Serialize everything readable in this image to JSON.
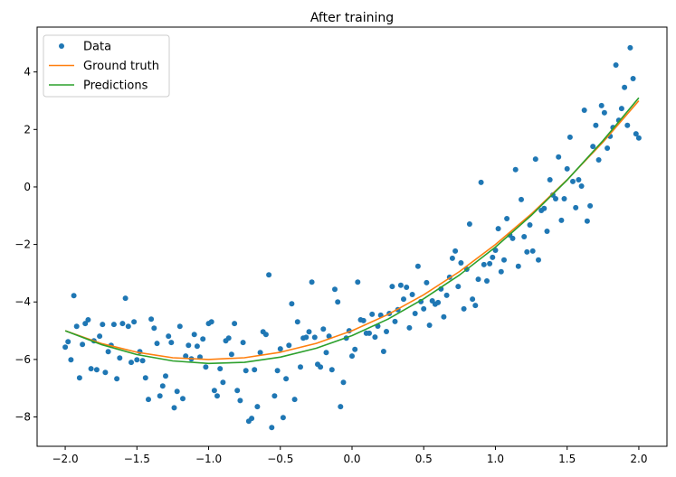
{
  "chart_data": {
    "type": "scatter",
    "title": "After training",
    "xlabel": "",
    "ylabel": "",
    "xlim": [
      -2.196,
      2.196
    ],
    "ylim": [
      -9.02,
      5.56
    ],
    "grid": false,
    "legend_position": "top-left",
    "x_ticks": [
      -2.0,
      -1.5,
      -1.0,
      -0.5,
      0.0,
      0.5,
      1.0,
      1.5,
      2.0
    ],
    "x_tick_labels": [
      "−2.0",
      "−1.5",
      "−1.0",
      "−0.5",
      "0.0",
      "0.5",
      "1.0",
      "1.5",
      "2.0"
    ],
    "y_ticks": [
      -8,
      -6,
      -4,
      -2,
      0,
      2,
      4
    ],
    "y_tick_labels": [
      "−8",
      "−6",
      "−4",
      "−2",
      "0",
      "2",
      "4"
    ],
    "series": [
      {
        "name": "Data",
        "kind": "scatter",
        "color": "#1f77b4",
        "x": [
          -2.0,
          -1.98,
          -1.96,
          -1.94,
          -1.92,
          -1.9,
          -1.88,
          -1.86,
          -1.84,
          -1.82,
          -1.8,
          -1.78,
          -1.76,
          -1.74,
          -1.72,
          -1.7,
          -1.68,
          -1.66,
          -1.64,
          -1.62,
          -1.6,
          -1.58,
          -1.56,
          -1.54,
          -1.52,
          -1.5,
          -1.48,
          -1.46,
          -1.44,
          -1.42,
          -1.4,
          -1.38,
          -1.36,
          -1.34,
          -1.32,
          -1.3,
          -1.28,
          -1.26,
          -1.24,
          -1.22,
          -1.2,
          -1.18,
          -1.16,
          -1.14,
          -1.12,
          -1.1,
          -1.08,
          -1.06,
          -1.04,
          -1.02,
          -1.0,
          -0.98,
          -0.96,
          -0.94,
          -0.92,
          -0.9,
          -0.88,
          -0.86,
          -0.84,
          -0.82,
          -0.8,
          -0.78,
          -0.76,
          -0.74,
          -0.72,
          -0.7,
          -0.68,
          -0.66,
          -0.64,
          -0.62,
          -0.6,
          -0.58,
          -0.56,
          -0.54,
          -0.52,
          -0.5,
          -0.48,
          -0.46,
          -0.44,
          -0.42,
          -0.4,
          -0.38,
          -0.36,
          -0.34,
          -0.32,
          -0.3,
          -0.28,
          -0.26,
          -0.24,
          -0.22,
          -0.2,
          -0.18,
          -0.16,
          -0.14,
          -0.12,
          -0.1,
          -0.08,
          -0.06,
          -0.04,
          -0.02,
          0.0,
          0.02,
          0.04,
          0.06,
          0.08,
          0.1,
          0.12,
          0.14,
          0.16,
          0.18,
          0.2,
          0.22,
          0.24,
          0.26,
          0.28,
          0.3,
          0.32,
          0.34,
          0.36,
          0.38,
          0.4,
          0.42,
          0.44,
          0.46,
          0.48,
          0.5,
          0.52,
          0.54,
          0.56,
          0.58,
          0.6,
          0.62,
          0.64,
          0.66,
          0.68,
          0.7,
          0.72,
          0.74,
          0.76,
          0.78,
          0.8,
          0.82,
          0.84,
          0.86,
          0.88,
          0.9,
          0.92,
          0.94,
          0.96,
          0.98,
          1.0,
          1.02,
          1.04,
          1.06,
          1.08,
          1.1,
          1.12,
          1.14,
          1.16,
          1.18,
          1.2,
          1.22,
          1.24,
          1.26,
          1.28,
          1.3,
          1.32,
          1.34,
          1.36,
          1.38,
          1.4,
          1.42,
          1.44,
          1.46,
          1.48,
          1.5,
          1.52,
          1.54,
          1.56,
          1.58,
          1.6,
          1.62,
          1.64,
          1.66,
          1.68,
          1.7,
          1.72,
          1.74,
          1.76,
          1.78,
          1.8,
          1.82,
          1.84,
          1.86,
          1.88,
          1.9,
          1.92,
          1.94,
          1.96,
          1.98,
          2.0
        ],
        "y": [
          -5.57,
          -5.38,
          -6.01,
          -3.78,
          -4.85,
          -6.64,
          -5.48,
          -4.75,
          -4.62,
          -6.32,
          -5.35,
          -6.36,
          -5.19,
          -4.78,
          -6.45,
          -5.73,
          -5.51,
          -4.78,
          -6.67,
          -5.95,
          -4.75,
          -3.87,
          -4.85,
          -6.1,
          -4.69,
          -6.01,
          -5.73,
          -6.04,
          -6.64,
          -7.39,
          -4.6,
          -4.91,
          -5.44,
          -7.27,
          -6.92,
          -6.58,
          -5.19,
          -5.41,
          -7.68,
          -7.11,
          -4.85,
          -7.36,
          -5.88,
          -5.51,
          -5.98,
          -5.13,
          -5.54,
          -5.92,
          -5.29,
          -6.26,
          -4.75,
          -4.69,
          -7.08,
          -7.27,
          -6.32,
          -6.8,
          -5.35,
          -5.26,
          -5.82,
          -4.75,
          -7.08,
          -7.43,
          -5.41,
          -6.39,
          -8.15,
          -8.05,
          -6.36,
          -7.64,
          -5.76,
          -5.04,
          -5.13,
          -3.06,
          -8.37,
          -7.27,
          -6.39,
          -5.63,
          -8.02,
          -6.67,
          -5.51,
          -4.06,
          -7.39,
          -4.69,
          -6.26,
          -5.26,
          -5.23,
          -5.04,
          -3.31,
          -5.23,
          -6.17,
          -6.26,
          -4.94,
          -5.76,
          -5.19,
          -6.36,
          -3.56,
          -4.0,
          -7.64,
          -6.8,
          -5.26,
          -5.0,
          -5.88,
          -5.65,
          -3.31,
          -4.62,
          -4.65,
          -5.09,
          -5.09,
          -4.43,
          -5.22,
          -4.84,
          -4.46,
          -5.72,
          -5.03,
          -4.4,
          -3.46,
          -4.68,
          -4.27,
          -3.42,
          -3.9,
          -3.49,
          -4.9,
          -3.74,
          -4.4,
          -2.76,
          -3.99,
          -4.24,
          -3.33,
          -4.81,
          -3.96,
          -4.08,
          -4.02,
          -3.55,
          -4.52,
          -3.77,
          -3.14,
          -2.48,
          -2.23,
          -3.46,
          -2.64,
          -4.24,
          -2.86,
          -1.29,
          -3.9,
          -4.12,
          -3.21,
          0.16,
          -2.7,
          -3.27,
          -2.67,
          -2.45,
          -2.2,
          -1.45,
          -2.95,
          -2.54,
          -1.1,
          -1.67,
          -1.79,
          0.6,
          -2.76,
          -0.44,
          -1.73,
          -2.26,
          -1.32,
          -2.23,
          0.97,
          -2.54,
          -0.82,
          -0.75,
          -1.54,
          0.25,
          -0.28,
          -0.41,
          1.04,
          -1.16,
          -0.41,
          0.63,
          1.73,
          0.19,
          -0.72,
          0.25,
          0.03,
          2.67,
          -1.19,
          -0.66,
          1.41,
          2.14,
          0.94,
          2.83,
          2.58,
          1.35,
          1.76,
          2.07,
          4.24,
          2.32,
          2.73,
          3.46,
          2.14,
          4.84,
          3.77,
          1.85,
          1.7
        ]
      },
      {
        "name": "Ground truth",
        "kind": "line",
        "color": "#ff7f0e",
        "x": [
          -2,
          -1.75,
          -1.5,
          -1.25,
          -1,
          -0.75,
          -0.5,
          -0.25,
          0,
          0.25,
          0.5,
          0.75,
          1,
          1.25,
          1.5,
          1.75,
          2
        ],
        "y": [
          -5,
          -5.44,
          -5.75,
          -5.94,
          -6,
          -5.94,
          -5.75,
          -5.44,
          -5,
          -4.44,
          -3.75,
          -2.94,
          -2,
          -0.94,
          0.25,
          1.56,
          3
        ]
      },
      {
        "name": "Predictions",
        "kind": "line",
        "color": "#2ca02c",
        "x": [
          -2,
          -1.75,
          -1.5,
          -1.25,
          -1,
          -0.75,
          -0.5,
          -0.25,
          0,
          0.25,
          0.5,
          0.75,
          1,
          1.25,
          1.5,
          1.75,
          2
        ],
        "y": [
          -5.0,
          -5.48,
          -5.83,
          -6.05,
          -6.14,
          -6.1,
          -5.92,
          -5.61,
          -5.17,
          -4.6,
          -3.89,
          -3.06,
          -2.09,
          -0.99,
          0.24,
          1.61,
          3.1
        ]
      }
    ]
  }
}
